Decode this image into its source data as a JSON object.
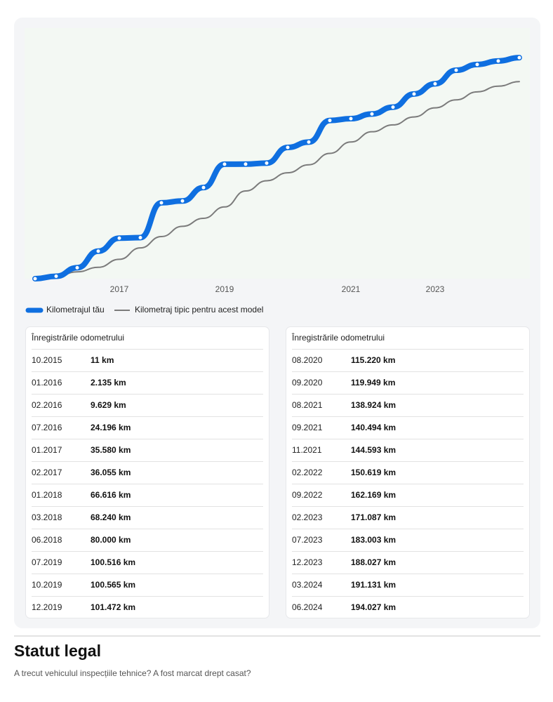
{
  "chart_data": {
    "type": "line",
    "categories": [
      "10.2015",
      "01.2016",
      "02.2016",
      "07.2016",
      "01.2017",
      "02.2017",
      "01.2018",
      "03.2018",
      "06.2018",
      "07.2019",
      "10.2019",
      "12.2019",
      "08.2020",
      "09.2020",
      "08.2021",
      "09.2021",
      "11.2021",
      "02.2022",
      "09.2022",
      "02.2023",
      "07.2023",
      "12.2023",
      "03.2024",
      "06.2024"
    ],
    "series": [
      {
        "name": "Kilometrajul tău",
        "color": "#0f6fe0",
        "values": [
          11,
          2135,
          9629,
          24196,
          35580,
          36055,
          66616,
          68240,
          80000,
          100516,
          100565,
          101472,
          115220,
          119949,
          138924,
          140494,
          144593,
          150619,
          162169,
          171087,
          183003,
          188027,
          191131,
          194027
        ],
        "value_labels": [
          "11 km",
          "2.135 km",
          "9.629 km",
          "24.196 km",
          "35.580 km",
          "36.055 km",
          "66.616 km",
          "68.240 km",
          "80.000 km",
          "100.516 km",
          "100.565 km",
          "101.472 km",
          "115.220 km",
          "119.949 km",
          "138.924 km",
          "140.494 km",
          "144.593 km",
          "150.619 km",
          "162.169 km",
          "171.087 km",
          "183.003 km",
          "188.027 km",
          "191.131 km",
          "194.027 km"
        ]
      },
      {
        "name": "Kilometraj tipic pentru acest model",
        "color": "#7b7b7b",
        "values": [
          0,
          2000,
          6000,
          10000,
          17000,
          27000,
          37000,
          46000,
          53000,
          63000,
          77000,
          86000,
          93000,
          100000,
          110000,
          120000,
          129000,
          135000,
          142000,
          150000,
          157000,
          164000,
          169000,
          173000
        ]
      }
    ],
    "ylim": [
      0,
      220000
    ],
    "xticks": [
      {
        "value": "01.2017",
        "label": "2017"
      },
      {
        "value": "07.2019",
        "label": "2019"
      },
      {
        "value": "09.2021",
        "label": "2021"
      },
      {
        "value": "02.2023",
        "label": "2023"
      }
    ]
  },
  "records": {
    "title": "Înregistrările odometrului"
  },
  "legal": {
    "title": "Statut legal",
    "subtitle": "A trecut vehiculul inspecțiile tehnice? A fost marcat drept casat?"
  }
}
